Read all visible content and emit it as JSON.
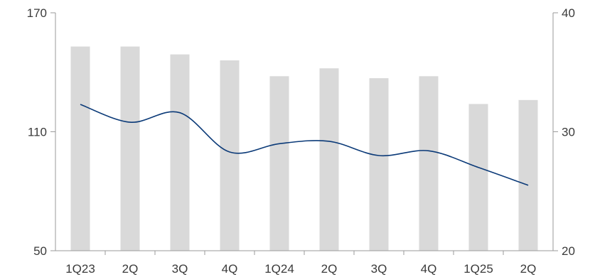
{
  "chart_data": {
    "type": "bar",
    "categories": [
      "1Q23",
      "2Q",
      "3Q",
      "4Q",
      "1Q24",
      "2Q",
      "3Q",
      "4Q",
      "1Q25",
      "2Q"
    ],
    "series": [
      {
        "type": "bar",
        "axis": "left",
        "values": [
          153,
          153,
          149,
          146,
          138,
          142,
          137,
          138,
          124,
          126
        ]
      },
      {
        "type": "line",
        "axis": "right",
        "values": [
          32.3,
          30.8,
          31.6,
          28.3,
          29.0,
          29.2,
          28.0,
          28.4,
          27.0,
          25.5
        ]
      }
    ],
    "yaxis_left": {
      "min": 50,
      "max": 170,
      "ticks": [
        50,
        110,
        170
      ]
    },
    "yaxis_right": {
      "min": 20,
      "max": 40,
      "ticks": [
        20,
        30,
        40
      ]
    },
    "grid": false,
    "legend": "none",
    "colors": {
      "bar": "#d9d9d9",
      "line": "#0b3a78",
      "axis": "#9a9a9a"
    }
  }
}
